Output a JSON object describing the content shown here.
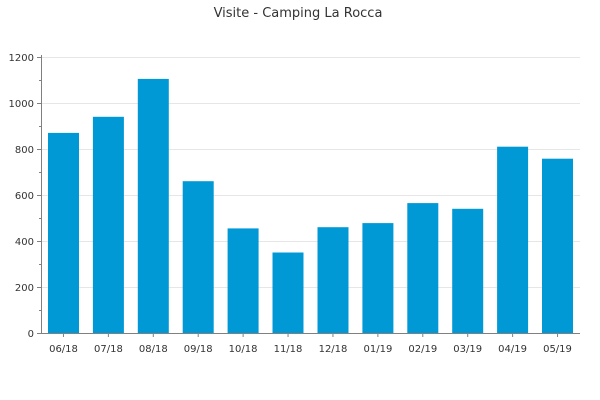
{
  "chart_data": {
    "type": "bar",
    "title": "Visite - Camping La Rocca",
    "xlabel": "",
    "ylabel": "",
    "categories": [
      "06/18",
      "07/18",
      "08/18",
      "09/18",
      "10/18",
      "11/18",
      "12/18",
      "01/19",
      "02/19",
      "03/19",
      "04/19",
      "05/19"
    ],
    "values": [
      870,
      940,
      1105,
      660,
      455,
      350,
      460,
      478,
      565,
      540,
      810,
      758
    ],
    "ylim": [
      0,
      1200
    ],
    "yticks": [
      0,
      200,
      400,
      600,
      800,
      1000,
      1200
    ],
    "grid": true,
    "legend": "none",
    "bar_color": "#0099d6"
  }
}
